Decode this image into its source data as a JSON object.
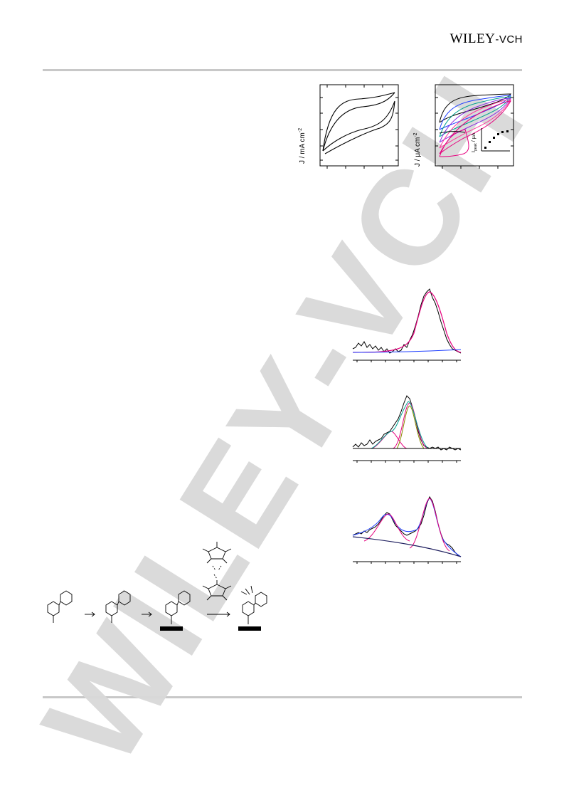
{
  "header": {
    "publisher_main": "WILEY",
    "publisher_suffix": "-VCH"
  },
  "watermark": {
    "text": "WILEY-VCH"
  },
  "figure_cv1": {
    "ylabel": "J / mA cm",
    "ylabel_exp": "-2"
  },
  "figure_cv2": {
    "ylabel": "J / μA cm",
    "ylabel_exp": "-2",
    "inset_ylabel": "I",
    "inset_ylabel_sub": "peak",
    "inset_ylabel_rest": " / μA"
  },
  "colors": {
    "watermark": "#d9d9d9",
    "rule": "#c8c8c8",
    "fit_pink": "#e6007e",
    "baseline_blue": "#1f3fff"
  },
  "chart_data": [
    {
      "type": "line",
      "title": "",
      "xlabel": "",
      "ylabel": "J / mA cm-2",
      "series": [
        {
          "name": "",
          "values": []
        }
      ],
      "grid": false
    },
    {
      "type": "line",
      "title": "",
      "xlabel": "",
      "ylabel": "J / μA cm-2",
      "series": [
        {
          "name": "",
          "values": []
        }
      ],
      "inset": {
        "type": "scatter",
        "ylabel": "Ipeak / μA"
      },
      "grid": false
    },
    {
      "type": "line",
      "title": "",
      "xlabel": "",
      "ylabel": "",
      "series": [
        {
          "name": "",
          "values": []
        }
      ]
    },
    {
      "type": "line",
      "title": "",
      "xlabel": "",
      "ylabel": "",
      "series": [
        {
          "name": "",
          "values": []
        }
      ]
    },
    {
      "type": "line",
      "title": "",
      "xlabel": "",
      "ylabel": "",
      "series": [
        {
          "name": "",
          "values": []
        }
      ]
    }
  ]
}
